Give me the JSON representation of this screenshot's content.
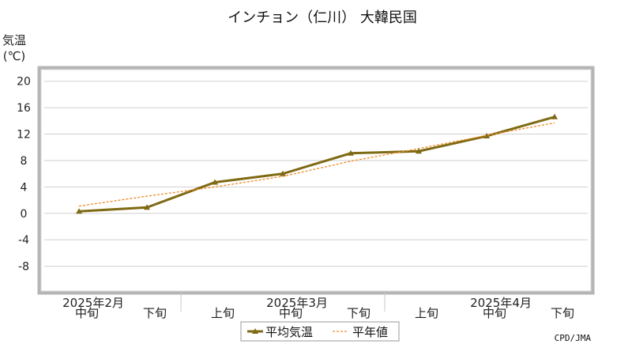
{
  "chart_data": {
    "type": "line",
    "title": "インチョン（仁川） 大韓民国",
    "ylabel_line1": "気温",
    "ylabel_line2": "(℃)",
    "ylim": [
      -12,
      22
    ],
    "yticks": [
      20,
      16,
      12,
      8,
      4,
      0,
      -4,
      -8
    ],
    "grid": true,
    "categories": [
      "中旬",
      "下旬",
      "上旬",
      "中旬",
      "下旬",
      "上旬",
      "中旬",
      "下旬"
    ],
    "month_labels": [
      {
        "label": "2025年2月",
        "category_index": 0
      },
      {
        "label": "2025年3月",
        "category_index": 3
      },
      {
        "label": "2025年4月",
        "category_index": 6
      }
    ],
    "series": [
      {
        "name": "平均気温",
        "color": "#7f6a14",
        "style": "solid-marker",
        "values": [
          0.3,
          0.9,
          4.7,
          6.0,
          9.1,
          9.4,
          11.7,
          14.6
        ]
      },
      {
        "name": "平年値",
        "color": "#f08a24",
        "style": "dashed",
        "values": [
          1.1,
          2.6,
          4.0,
          5.6,
          7.9,
          9.8,
          11.8,
          13.7
        ]
      }
    ],
    "legend_position": "bottom"
  },
  "credit": "CPD/JMA"
}
